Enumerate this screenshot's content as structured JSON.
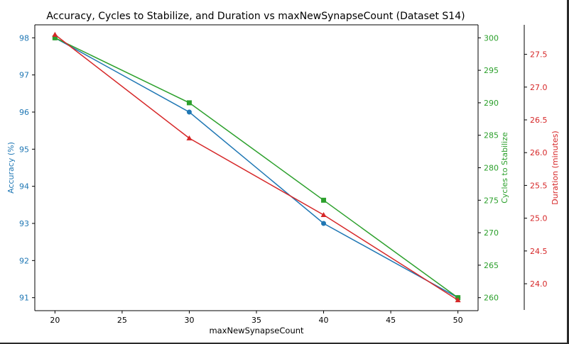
{
  "chart_data": {
    "type": "line",
    "title": "Accuracy, Cycles to Stabilize, and Duration vs maxNewSynapseCount (Dataset S14)",
    "xlabel": "maxNewSynapseCount",
    "x": [
      20,
      30,
      40,
      50
    ],
    "xlim": [
      18.5,
      51.5
    ],
    "xticks": [
      20,
      25,
      30,
      35,
      40,
      45,
      50
    ],
    "grid": false,
    "legend": "none",
    "axes": [
      {
        "id": "left",
        "label": "Accuracy (%)",
        "color": "#1f77b4",
        "ylim": [
          90.65,
          98.35
        ],
        "ticks": [
          91,
          92,
          93,
          94,
          95,
          96,
          97,
          98
        ],
        "tick_decimals": 0
      },
      {
        "id": "right1",
        "label": "Cycles to Stabilize",
        "color": "#2ca02c",
        "ylim": [
          258.0,
          302.0
        ],
        "ticks": [
          260,
          265,
          270,
          275,
          280,
          285,
          290,
          295,
          300
        ],
        "tick_decimals": 0
      },
      {
        "id": "right2",
        "label": "Duration (minutes)",
        "color": "#d62728",
        "ylim": [
          23.6,
          27.95
        ],
        "ticks": [
          24.0,
          24.5,
          25.0,
          25.5,
          26.0,
          26.5,
          27.0,
          27.5
        ],
        "tick_decimals": 1
      }
    ],
    "series": [
      {
        "axis": "left",
        "color": "#1f77b4",
        "marker": "circle",
        "values": [
          98,
          96,
          93,
          91
        ]
      },
      {
        "axis": "right1",
        "color": "#2ca02c",
        "marker": "square",
        "values": [
          300,
          290,
          275,
          260
        ]
      },
      {
        "axis": "right2",
        "color": "#d62728",
        "marker": "triangle",
        "values": [
          27.8,
          26.22,
          25.05,
          23.75
        ]
      }
    ]
  }
}
